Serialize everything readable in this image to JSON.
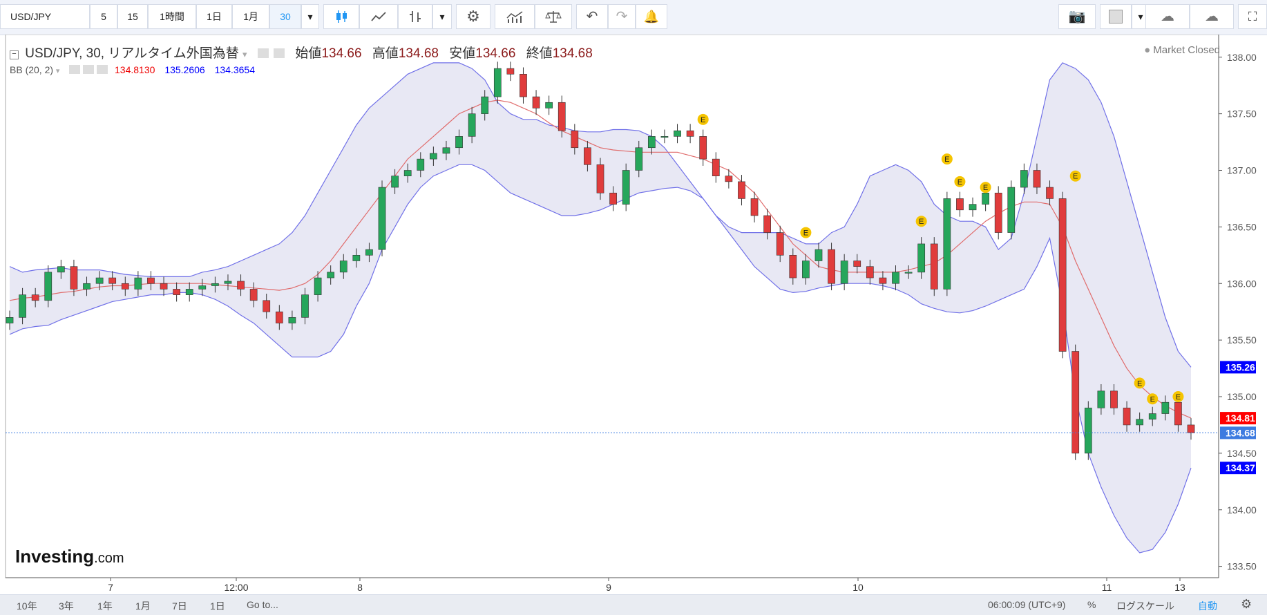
{
  "toolbar": {
    "symbol": "USD/JPY",
    "intervals": [
      "5",
      "15",
      "1時間",
      "1日",
      "1月",
      "30"
    ],
    "active_interval": "30"
  },
  "legend": {
    "title": "USD/JPY, 30, リアルタイム外国為替",
    "open_label": "始値",
    "open": "134.66",
    "high_label": "高値",
    "high": "134.68",
    "low_label": "安値",
    "low": "134.66",
    "close_label": "終値",
    "close": "134.68",
    "bb_label": "BB (20, 2)",
    "bb_mid": "134.8130",
    "bb_upper": "135.2606",
    "bb_lower": "134.3654"
  },
  "market_status": "Market Closed",
  "logo": {
    "main": "Investing",
    "suffix": ".com"
  },
  "bottom": {
    "ranges": [
      "10年",
      "3年",
      "1年",
      "1月",
      "7日",
      "1日",
      "Go to..."
    ],
    "time": "06:00:09 (UTC+9)",
    "percent": "%",
    "log": "ログスケール",
    "auto": "自動"
  },
  "colors": {
    "up": "#26a65b",
    "down": "#e03c3c",
    "band": "#7070e8",
    "band_fill": "#e8e8f4",
    "mid": "#e06b6b"
  },
  "chart_data": {
    "type": "candlestick",
    "title": "USD/JPY, 30",
    "ylim": [
      133.4,
      138.2
    ],
    "y_ticks": [
      "138.00",
      "137.50",
      "137.00",
      "136.50",
      "136.00",
      "135.50",
      "135.00",
      "134.50",
      "134.00",
      "133.50"
    ],
    "x_ticks": [
      "7",
      "12:00",
      "8",
      "9",
      "10",
      "11",
      "13"
    ],
    "price_labels": [
      {
        "value": 135.26,
        "text": "135.26",
        "color": "#0000ff"
      },
      {
        "value": 134.81,
        "text": "134.81",
        "color": "#ff0000"
      },
      {
        "value": 134.68,
        "text": "134.68",
        "color": "#3d7be0"
      },
      {
        "value": 134.37,
        "text": "134.37",
        "color": "#0000ff"
      }
    ],
    "last_price": 134.68,
    "closes": [
      135.7,
      135.9,
      135.85,
      136.1,
      136.15,
      135.95,
      136.0,
      136.05,
      136.0,
      135.95,
      136.05,
      136.0,
      135.95,
      135.9,
      135.95,
      135.98,
      136.0,
      136.02,
      135.95,
      135.85,
      135.75,
      135.65,
      135.7,
      135.9,
      136.05,
      136.1,
      136.2,
      136.25,
      136.3,
      136.85,
      136.95,
      137.0,
      137.1,
      137.15,
      137.2,
      137.3,
      137.5,
      137.65,
      137.9,
      137.85,
      137.65,
      137.55,
      137.6,
      137.35,
      137.2,
      137.05,
      136.8,
      136.7,
      137.0,
      137.2,
      137.3,
      137.3,
      137.35,
      137.3,
      137.1,
      136.95,
      136.9,
      136.75,
      136.6,
      136.45,
      136.25,
      136.05,
      136.2,
      136.3,
      136.0,
      136.2,
      136.15,
      136.05,
      136.0,
      136.1,
      136.1,
      136.35,
      135.95,
      136.75,
      136.65,
      136.7,
      136.8,
      136.45,
      136.85,
      137.0,
      136.85,
      136.75,
      135.4,
      134.5,
      134.9,
      135.05,
      134.9,
      134.75,
      134.8,
      134.85,
      134.95,
      134.75,
      134.68
    ],
    "bb_mid": [
      135.85,
      135.87,
      135.88,
      135.9,
      135.92,
      135.93,
      135.95,
      135.97,
      135.98,
      135.98,
      135.99,
      136.0,
      136.0,
      136.0,
      136.0,
      136.0,
      135.99,
      135.98,
      135.97,
      135.96,
      135.95,
      135.94,
      135.96,
      136.0,
      136.08,
      136.2,
      136.35,
      136.5,
      136.65,
      136.8,
      136.95,
      137.1,
      137.2,
      137.3,
      137.4,
      137.5,
      137.55,
      137.6,
      137.62,
      137.6,
      137.55,
      137.5,
      137.42,
      137.35,
      137.3,
      137.25,
      137.2,
      137.18,
      137.17,
      137.16,
      137.16,
      137.16,
      137.16,
      137.13,
      137.1,
      137.05,
      137.0,
      136.9,
      136.8,
      136.65,
      136.5,
      136.35,
      136.25,
      136.15,
      136.12,
      136.1,
      136.1,
      136.1,
      136.1,
      136.1,
      136.12,
      136.15,
      136.18,
      136.25,
      136.35,
      136.45,
      136.55,
      136.62,
      136.68,
      136.72,
      136.72,
      136.7,
      136.5,
      136.2,
      135.95,
      135.7,
      135.45,
      135.25,
      135.1,
      135.0,
      134.92,
      134.86,
      134.81
    ],
    "bb_upper": [
      136.15,
      136.1,
      136.12,
      136.13,
      136.14,
      136.12,
      136.12,
      136.12,
      136.1,
      136.08,
      136.07,
      136.06,
      136.06,
      136.06,
      136.06,
      136.1,
      136.12,
      136.15,
      136.2,
      136.25,
      136.3,
      136.35,
      136.45,
      136.6,
      136.8,
      137.0,
      137.2,
      137.4,
      137.55,
      137.65,
      137.75,
      137.85,
      137.9,
      137.95,
      137.95,
      137.95,
      137.9,
      137.8,
      137.6,
      137.5,
      137.45,
      137.45,
      137.4,
      137.38,
      137.35,
      137.34,
      137.34,
      137.36,
      137.36,
      137.35,
      137.3,
      137.2,
      137.05,
      136.9,
      136.75,
      136.6,
      136.5,
      136.45,
      136.45,
      136.45,
      136.45,
      136.4,
      136.35,
      136.35,
      136.45,
      136.5,
      136.7,
      136.95,
      137.0,
      137.05,
      137.0,
      136.9,
      136.7,
      136.6,
      136.55,
      136.55,
      136.5,
      136.3,
      136.4,
      136.8,
      137.3,
      137.8,
      137.95,
      137.9,
      137.8,
      137.6,
      137.3,
      136.9,
      136.5,
      136.1,
      135.7,
      135.4,
      135.26
    ],
    "bb_lower": [
      135.55,
      135.6,
      135.62,
      135.63,
      135.68,
      135.72,
      135.76,
      135.8,
      135.84,
      135.86,
      135.88,
      135.9,
      135.9,
      135.92,
      135.92,
      135.9,
      135.86,
      135.8,
      135.72,
      135.65,
      135.55,
      135.45,
      135.35,
      135.35,
      135.35,
      135.4,
      135.55,
      135.8,
      136.0,
      136.3,
      136.5,
      136.7,
      136.85,
      136.95,
      137.0,
      137.05,
      137.05,
      137.0,
      136.9,
      136.8,
      136.75,
      136.7,
      136.65,
      136.6,
      136.6,
      136.62,
      136.65,
      136.7,
      136.75,
      136.8,
      136.82,
      136.84,
      136.85,
      136.82,
      136.75,
      136.6,
      136.45,
      136.3,
      136.15,
      136.05,
      135.95,
      135.92,
      135.93,
      135.96,
      135.98,
      136.0,
      136.0,
      136.0,
      135.98,
      135.95,
      135.9,
      135.82,
      135.78,
      135.75,
      135.74,
      135.76,
      135.8,
      135.85,
      135.9,
      135.95,
      136.15,
      136.4,
      135.8,
      135.0,
      134.5,
      134.2,
      133.95,
      133.75,
      133.62,
      133.65,
      133.8,
      134.05,
      134.37
    ],
    "earnings_markers": [
      {
        "index": 54,
        "value": 137.45,
        "label": "E"
      },
      {
        "index": 62,
        "value": 136.45,
        "label": "E"
      },
      {
        "index": 71,
        "value": 136.55,
        "label": "E"
      },
      {
        "index": 73,
        "value": 137.1,
        "label": "E"
      },
      {
        "index": 74,
        "value": 136.9,
        "label": "E"
      },
      {
        "index": 76,
        "value": 136.85,
        "label": "E"
      },
      {
        "index": 83,
        "value": 136.95,
        "label": "E"
      },
      {
        "index": 88,
        "value": 135.12,
        "label": "E"
      },
      {
        "index": 89,
        "value": 134.98,
        "label": "E"
      },
      {
        "index": 91,
        "value": 135.0,
        "label": "E"
      }
    ]
  }
}
